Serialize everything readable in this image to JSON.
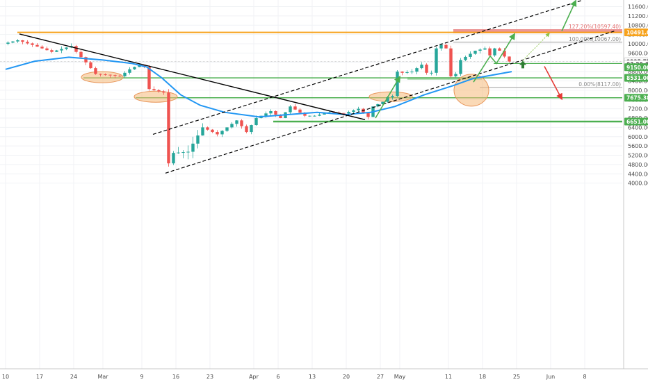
{
  "chart_data": {
    "type": "candlestick",
    "price_axis": {
      "ticks": [
        11600,
        11200,
        10800,
        10400,
        10000,
        9600,
        9200,
        8800,
        8400,
        8000,
        7600,
        7200,
        6800,
        6400,
        6000,
        5600,
        5200,
        4800,
        4400,
        4000
      ],
      "tick_labels": [
        "11600.00",
        "11200.00",
        "10800.00",
        "10400.00",
        "10000.00",
        "9600.00",
        "9200.00",
        "8800.00",
        "8400.00",
        "8000.00",
        "7600.00",
        "7200.00",
        "6800.00",
        "6400.00",
        "6000.00",
        "5600.00",
        "5200.00",
        "4800.00",
        "4400.00",
        "4000.00"
      ],
      "range": [
        3800,
        11900
      ]
    },
    "time_axis": {
      "labels": [
        "10",
        "17",
        "24",
        "Mar",
        "9",
        "16",
        "23",
        "Apr",
        "6",
        "13",
        "20",
        "27",
        "May",
        "11",
        "18",
        "25",
        "Jun",
        "8"
      ],
      "dates": [
        "2020-02-10",
        "2020-02-17",
        "2020-02-24",
        "2020-03-01",
        "2020-03-09",
        "2020-03-16",
        "2020-03-23",
        "2020-04-01",
        "2020-04-06",
        "2020-04-13",
        "2020-04-20",
        "2020-04-27",
        "2020-05-01",
        "2020-05-11",
        "2020-05-18",
        "2020-05-25",
        "2020-06-01",
        "2020-06-08"
      ]
    },
    "price_tags": [
      {
        "label": "10491.00",
        "price": 10491,
        "color": "#f7a21b"
      },
      {
        "label": "9235.75",
        "price": 9235.75,
        "color": "#ffffff",
        "text_color": "#333333"
      },
      {
        "label": "03:29:08",
        "price": 9120,
        "color": "#ffffff",
        "text_color": "#333333"
      },
      {
        "label": "9150.00",
        "price": 8990,
        "color": "#4caf50"
      },
      {
        "label": "8531.00",
        "price": 8531,
        "color": "#4caf50"
      },
      {
        "label": "7675.38",
        "price": 7675.38,
        "color": "#4caf50"
      },
      {
        "label": "6651.00",
        "price": 6651,
        "color": "#4caf50"
      }
    ],
    "fib_labels": [
      {
        "text": "127.20%(10597.40)",
        "price": 10597.4,
        "color": "#e57373"
      },
      {
        "text": "100.00%(10067.00)",
        "price": 10067,
        "color": "#888888"
      },
      {
        "text": "0.00%(8117.00)",
        "price": 8117,
        "color": "#888888"
      }
    ],
    "support_levels": [
      10491,
      8531,
      7675.38,
      6651
    ],
    "colors": {
      "up": "#26a69a",
      "down": "#ef5350",
      "ma": "#2196f3",
      "support": "#4caf50",
      "resistance": "#f7a21b",
      "zone": "#e57373",
      "trendline": "#000000",
      "ellipse": "#f5b97a"
    }
  }
}
